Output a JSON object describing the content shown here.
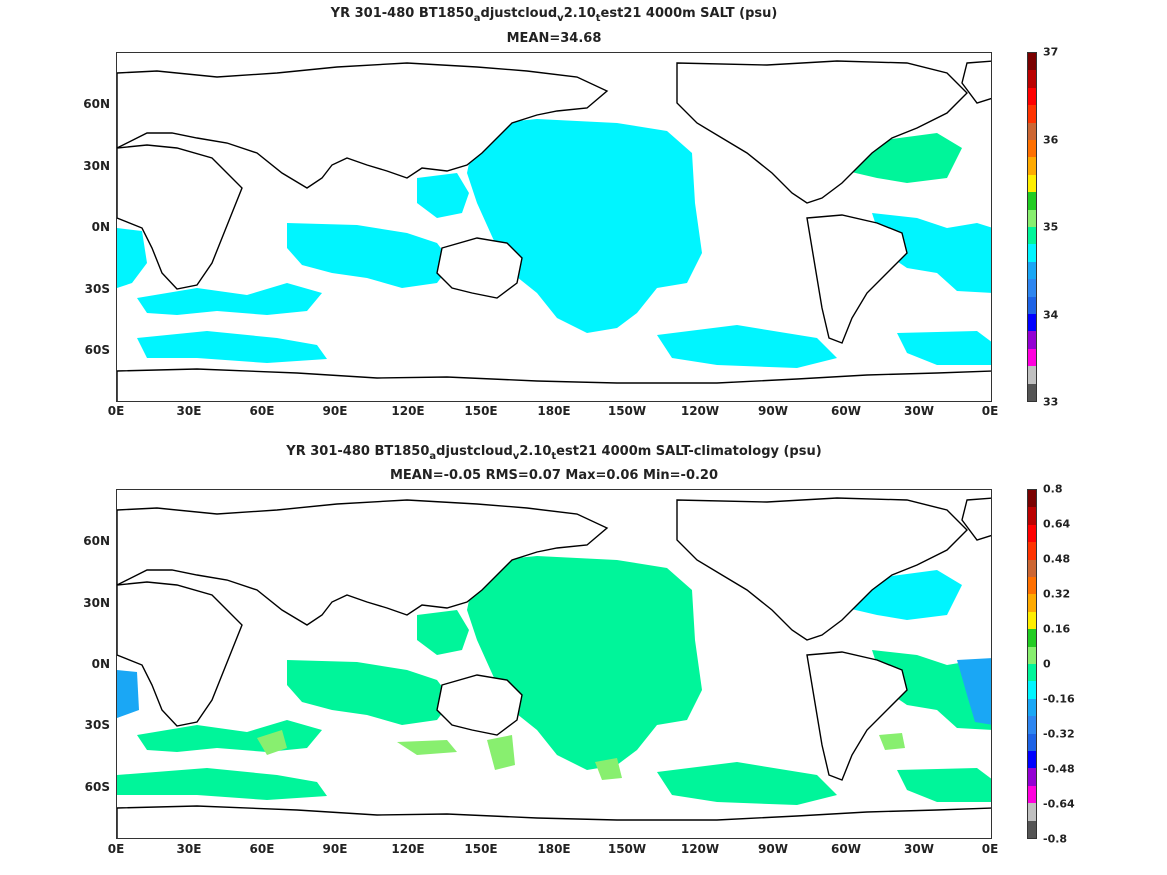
{
  "x_ticks": [
    "0E",
    "30E",
    "60E",
    "90E",
    "120E",
    "150E",
    "180E",
    "150W",
    "120W",
    "90W",
    "60W",
    "30W",
    "0E"
  ],
  "y_ticks": [
    "60N",
    "30N",
    "0N",
    "30S",
    "60S"
  ],
  "colors": {
    "land": "#ffffff",
    "coast": "#000000",
    "cyan": "#00f5ff",
    "green": "#00f59a",
    "lightgreen": "#88ef6f",
    "blue": "#1aa7f5",
    "palette": [
      "#555555",
      "#c0c0c0",
      "#ff00dd",
      "#9400d3",
      "#0000ff",
      "#1e63e6",
      "#2e86f0",
      "#1aa7f5",
      "#00f5ff",
      "#00f59a",
      "#88ef6f",
      "#22cc22",
      "#ffee00",
      "#ffaa00",
      "#ff7000",
      "#cc6633",
      "#ff3300",
      "#ff0000",
      "#bb0000",
      "#7a0000"
    ]
  },
  "map_panels": [
    {
      "title_prefix": "YR 301-480 BT1850",
      "sub1": "a",
      "mid1": "djustcloud",
      "sub2": "v",
      "mid2": "2.10",
      "sub3": "t",
      "suffix": "est21 4000m SALT (psu)",
      "stats": "MEAN=34.68",
      "colorbar_labels": [
        "37",
        "36",
        "35",
        "34",
        "33"
      ],
      "colorbar_values": [
        37,
        36,
        35,
        34,
        33
      ],
      "colorbar_range": [
        33,
        37
      ]
    },
    {
      "title_prefix": "YR 301-480 BT1850",
      "sub1": "a",
      "mid1": "djustcloud",
      "sub2": "v",
      "mid2": "2.10",
      "sub3": "t",
      "suffix": "est21 4000m SALT-climatology (psu)",
      "stats": "MEAN=-0.05   RMS=0.07   Max=0.06   Min=-0.20",
      "colorbar_labels": [
        "0.8",
        "0.64",
        "0.48",
        "0.32",
        "0.16",
        "0",
        "-0.16",
        "-0.32",
        "-0.48",
        "-0.64",
        "-0.8"
      ],
      "colorbar_values": [
        0.8,
        0.64,
        0.48,
        0.32,
        0.16,
        0,
        -0.16,
        -0.32,
        -0.48,
        -0.64,
        -0.8
      ],
      "colorbar_range": [
        -0.8,
        0.8
      ]
    }
  ]
}
